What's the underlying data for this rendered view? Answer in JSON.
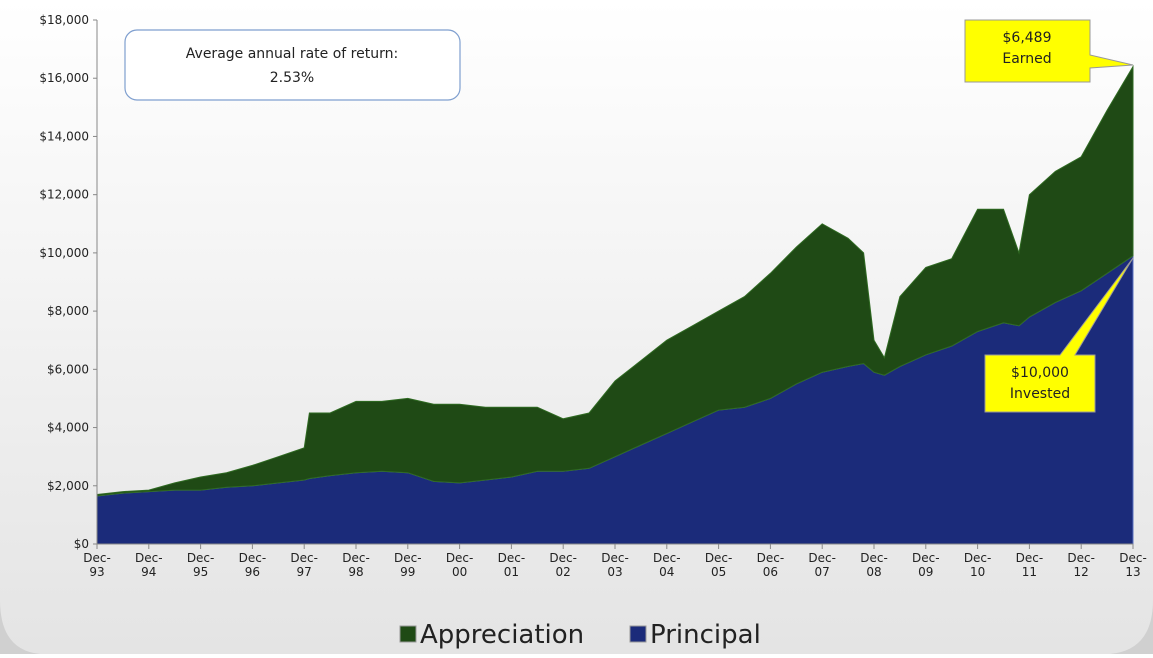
{
  "chart_data": {
    "type": "stacked_area",
    "x": [
      0,
      0.5,
      1,
      1.5,
      2,
      2.5,
      3,
      3.5,
      4,
      4.1,
      4.5,
      5,
      5.5,
      6,
      6.5,
      7,
      7.5,
      8,
      8.5,
      9,
      9.5,
      10,
      10.5,
      11,
      11.5,
      12,
      12.5,
      13,
      13.5,
      14,
      14.5,
      14.8,
      15,
      15.2,
      15.5,
      16,
      16.5,
      17,
      17.5,
      17.8,
      18,
      18.5,
      19,
      19.5,
      20
    ],
    "series": [
      {
        "name": "Principal",
        "color": "#1b2b7a",
        "values": [
          1650,
          1750,
          1800,
          1850,
          1850,
          1950,
          2000,
          2100,
          2200,
          2250,
          2350,
          2450,
          2500,
          2450,
          2150,
          2100,
          2200,
          2300,
          2500,
          2500,
          2600,
          3000,
          3400,
          3800,
          4200,
          4600,
          4700,
          5000,
          5500,
          5900,
          6100,
          6200,
          5900,
          5800,
          6100,
          6500,
          6800,
          7300,
          7600,
          7500,
          7800,
          8300,
          8700,
          9300,
          9900
        ]
      },
      {
        "name": "Appreciation",
        "color": "#1f4a15",
        "values": [
          50,
          50,
          50,
          250,
          450,
          500,
          700,
          900,
          1100,
          2250,
          2150,
          2450,
          2400,
          2550,
          2650,
          2700,
          2500,
          2400,
          2200,
          1800,
          1900,
          2600,
          2900,
          3200,
          3300,
          3400,
          3800,
          4300,
          4700,
          5100,
          4400,
          3800,
          1100,
          600,
          2400,
          3000,
          3000,
          4200,
          3900,
          2500,
          4200,
          4500,
          4600,
          5600,
          6500
        ]
      }
    ],
    "legend_order": [
      "Appreciation",
      "Principal"
    ],
    "xlim": [
      0,
      20
    ],
    "xticks": [
      {
        "value": 0,
        "label": "Dec-93"
      },
      {
        "value": 1,
        "label": "Dec-94"
      },
      {
        "value": 2,
        "label": "Dec-95"
      },
      {
        "value": 3,
        "label": "Dec-96"
      },
      {
        "value": 4,
        "label": "Dec-97"
      },
      {
        "value": 5,
        "label": "Dec-98"
      },
      {
        "value": 6,
        "label": "Dec-99"
      },
      {
        "value": 7,
        "label": "Dec-00"
      },
      {
        "value": 8,
        "label": "Dec-01"
      },
      {
        "value": 9,
        "label": "Dec-02"
      },
      {
        "value": 10,
        "label": "Dec-03"
      },
      {
        "value": 11,
        "label": "Dec-04"
      },
      {
        "value": 12,
        "label": "Dec-05"
      },
      {
        "value": 13,
        "label": "Dec-06"
      },
      {
        "value": 14,
        "label": "Dec-07"
      },
      {
        "value": 15,
        "label": "Dec-08"
      },
      {
        "value": 16,
        "label": "Dec-09"
      },
      {
        "value": 17,
        "label": "Dec-10"
      },
      {
        "value": 18,
        "label": "Dec-11"
      },
      {
        "value": 19,
        "label": "Dec-12"
      },
      {
        "value": 20,
        "label": "Dec-13"
      }
    ],
    "ylim": [
      0,
      18000
    ],
    "yticks": [
      {
        "value": 0,
        "label": "$0"
      },
      {
        "value": 2000,
        "label": "$2,000"
      },
      {
        "value": 4000,
        "label": "$4,000"
      },
      {
        "value": 6000,
        "label": "$6,000"
      },
      {
        "value": 8000,
        "label": "$8,000"
      },
      {
        "value": 10000,
        "label": "$10,000"
      },
      {
        "value": 12000,
        "label": "$12,000"
      },
      {
        "value": 14000,
        "label": "$14,000"
      },
      {
        "value": 16000,
        "label": "$16,000"
      },
      {
        "value": 18000,
        "label": "$18,000"
      }
    ],
    "annotations": [
      {
        "lines": [
          "Average annual rate of return:",
          "2.53%"
        ]
      },
      {
        "lines": [
          "$6,489",
          "Earned"
        ]
      },
      {
        "lines": [
          "$10,000",
          "Invested"
        ]
      }
    ]
  }
}
